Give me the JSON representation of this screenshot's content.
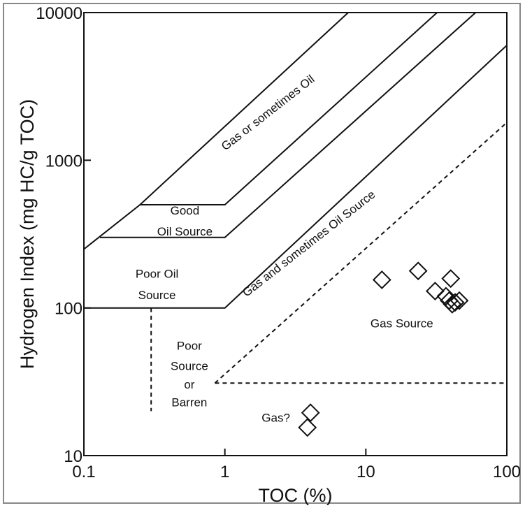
{
  "chart_data": {
    "type": "scatter",
    "title": "",
    "xlabel": "TOC (%)",
    "ylabel": "Hydrogen Index (mg HC/g TOC)",
    "xscale": "log",
    "yscale": "log",
    "xlim": [
      0.1,
      100
    ],
    "ylim": [
      10,
      10000
    ],
    "x_ticks": [
      0.1,
      1,
      10,
      100
    ],
    "x_tick_labels": [
      "0.1",
      "1",
      "10",
      "100"
    ],
    "y_ticks": [
      10,
      100,
      1000,
      10000
    ],
    "y_tick_labels": [
      "10",
      "100",
      "1000",
      "10000"
    ],
    "grid": false,
    "marker": "diamond",
    "points": [
      {
        "x": 13,
        "y": 155
      },
      {
        "x": 23.5,
        "y": 178
      },
      {
        "x": 31,
        "y": 130
      },
      {
        "x": 40,
        "y": 158
      },
      {
        "x": 37,
        "y": 120
      },
      {
        "x": 39,
        "y": 112
      },
      {
        "x": 41,
        "y": 106
      },
      {
        "x": 46,
        "y": 112
      },
      {
        "x": 43,
        "y": 109
      },
      {
        "x": 4.05,
        "y": 19.5
      },
      {
        "x": 3.85,
        "y": 15.5
      }
    ],
    "boundaries": [
      {
        "style": "solid",
        "points": [
          [
            0.1,
            100
          ],
          [
            1,
            100
          ],
          [
            100,
            6000
          ]
        ]
      },
      {
        "style": "solid",
        "points": [
          [
            0.13,
            300
          ],
          [
            1,
            300
          ],
          [
            60,
            10000
          ]
        ]
      },
      {
        "style": "solid",
        "points": [
          [
            0.25,
            500
          ],
          [
            1,
            500
          ],
          [
            32,
            10000
          ]
        ]
      },
      {
        "style": "solid",
        "points": [
          [
            0.1,
            250
          ],
          [
            0.25,
            500
          ],
          [
            7.5,
            10000
          ]
        ]
      },
      {
        "style": "dashed",
        "points": [
          [
            0.3,
            100
          ],
          [
            0.3,
            20
          ]
        ]
      },
      {
        "style": "dashed",
        "points": [
          [
            0.85,
            31
          ],
          [
            100,
            1800
          ]
        ]
      },
      {
        "style": "dashed",
        "points": [
          [
            0.85,
            31
          ],
          [
            100,
            31
          ]
        ]
      }
    ],
    "annotations": [
      {
        "text": "Gas or sometimes Oil",
        "x": 2.1,
        "y": 2000,
        "rotate": -38
      },
      {
        "text": "Good",
        "x": 0.52,
        "y": 430
      },
      {
        "text": "Oil Source",
        "x": 0.52,
        "y": 310
      },
      {
        "text": "Poor Oil",
        "x": 0.33,
        "y": 160
      },
      {
        "text": "Source",
        "x": 0.33,
        "y": 115
      },
      {
        "text": "Gas and sometimes Oil Source",
        "x": 4.1,
        "y": 260,
        "rotate": -38
      },
      {
        "text": "Gas Source",
        "x": 18,
        "y": 74
      },
      {
        "text": "Poor",
        "x": 0.56,
        "y": 52
      },
      {
        "text": "Source",
        "x": 0.56,
        "y": 38
      },
      {
        "text": "or",
        "x": 0.56,
        "y": 28.5
      },
      {
        "text": "Barren",
        "x": 0.56,
        "y": 21.5
      },
      {
        "text": "Gas?",
        "x": 2.3,
        "y": 17
      }
    ]
  }
}
